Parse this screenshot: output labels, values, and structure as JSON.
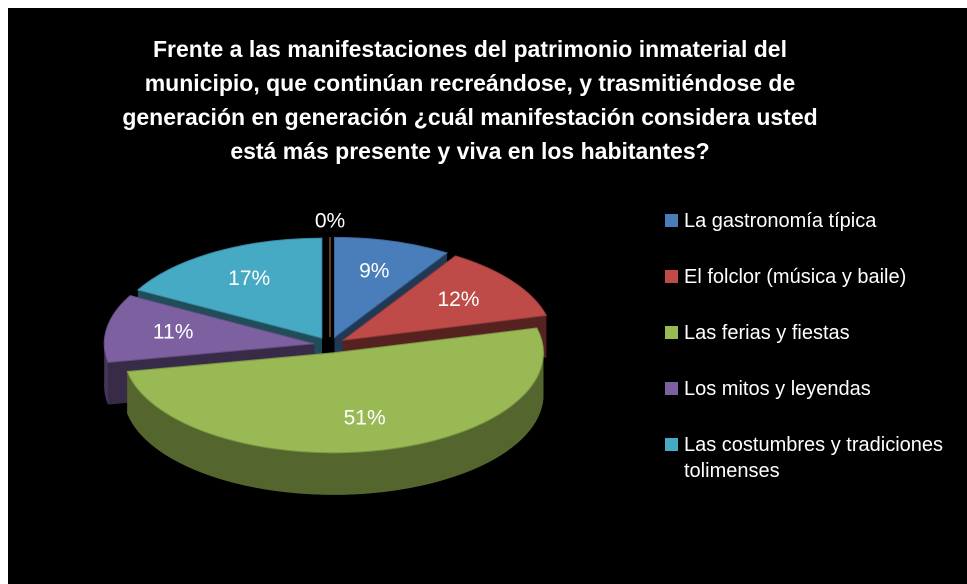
{
  "chart_data": {
    "type": "pie",
    "title": "Frente a las manifestaciones del patrimonio inmaterial del municipio, que continúan recreándose,  y trasmitiéndose de generación en generación ¿cuál manifestación considera usted está más presente y viva en los habitantes?",
    "categories": [
      "La gastronomía típica",
      "El folclor (música y baile)",
      "Las ferias y fiestas",
      "Los mitos y leyendas",
      "Las costumbres y tradiciones tolimenses",
      null
    ],
    "values": [
      9,
      12,
      51,
      11,
      17,
      0
    ],
    "value_labels": [
      "9%",
      "12%",
      "51%",
      "11%",
      "17%",
      "0%"
    ],
    "colors": [
      "#4a7ebb",
      "#be4b48",
      "#98b954",
      "#7d60a0",
      "#46aac5",
      "#f79646"
    ],
    "legend": "right"
  }
}
